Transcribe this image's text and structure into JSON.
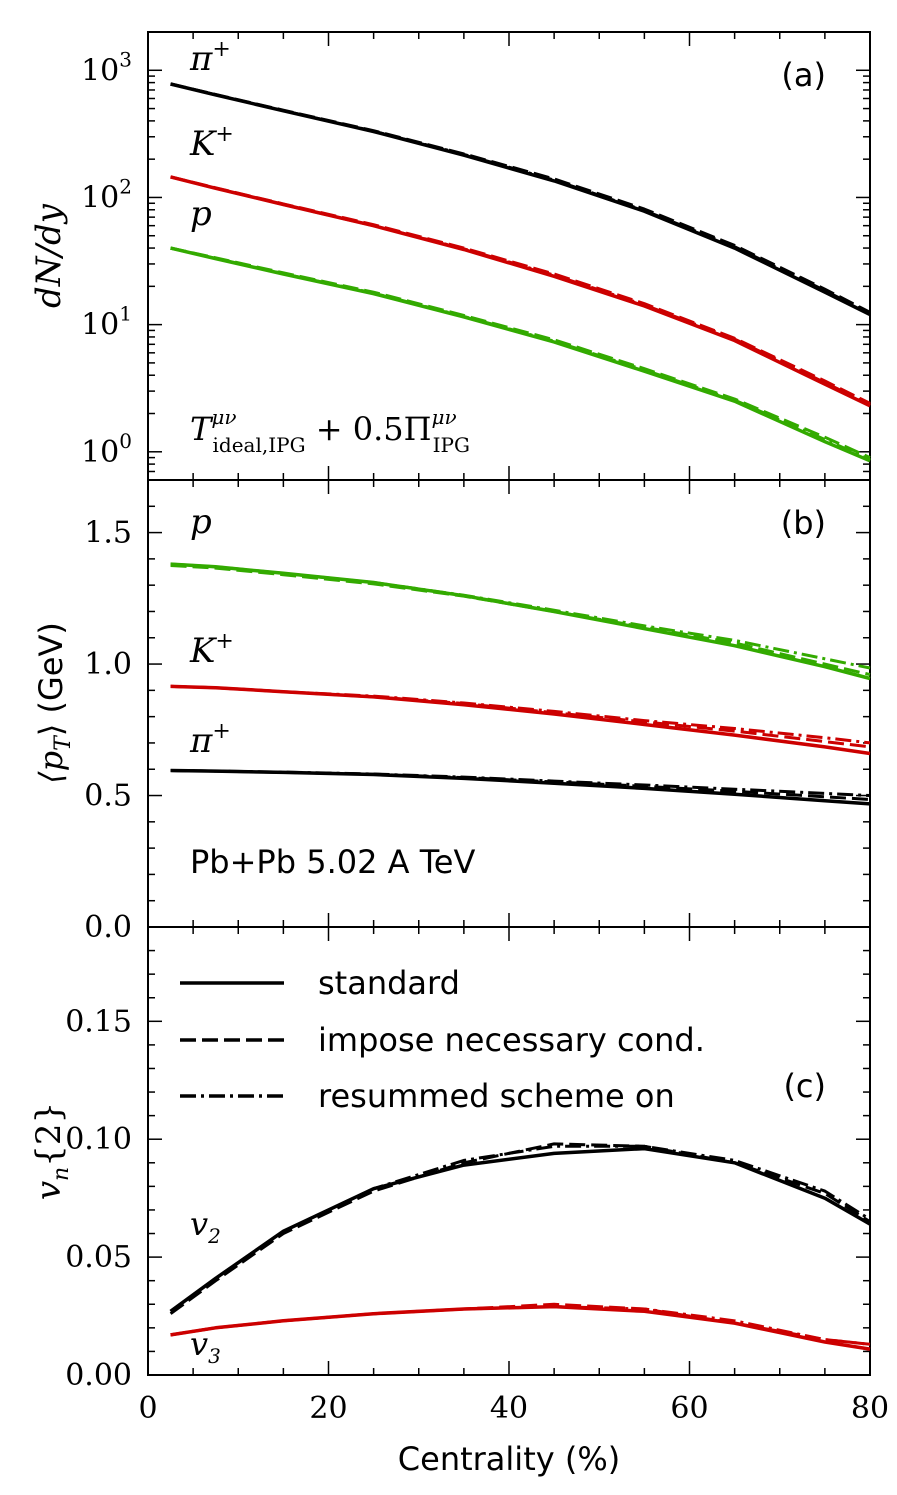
{
  "chart_data": [
    {
      "panel": "(a)",
      "type": "line",
      "yscale": "log",
      "ylim": [
        0.6,
        2000
      ],
      "ylabel": "dN/dy",
      "yticks": [
        {
          "value": 1,
          "base": "10",
          "exp": "0"
        },
        {
          "value": 10,
          "base": "10",
          "exp": "1"
        },
        {
          "value": 100,
          "base": "10",
          "exp": "2"
        },
        {
          "value": 1000,
          "base": "10",
          "exp": "3"
        }
      ],
      "annotation": {
        "T": "T",
        "T_sup": "μν",
        "T_sub": "ideal,IPG",
        "mid": " + 0.5Π",
        "Pi_sup": "μν",
        "Pi_sub": "IPG"
      },
      "series": [
        {
          "name": "π+",
          "label_base": "π",
          "label_sup": "+",
          "color": "#000000",
          "x": [
            2.5,
            7.5,
            15,
            25,
            35,
            45,
            55,
            65,
            75,
            80
          ],
          "standard": [
            780,
            640,
            480,
            330,
            215,
            135,
            78,
            40,
            18,
            12
          ],
          "necessary": [
            780,
            645,
            485,
            335,
            220,
            140,
            81,
            42,
            19,
            12.5
          ],
          "resummed": [
            780,
            642,
            482,
            332,
            218,
            137,
            79,
            41,
            18.5,
            12.2
          ]
        },
        {
          "name": "K+",
          "label_base": "K",
          "label_sup": "+",
          "color": "#cc0000",
          "x": [
            2.5,
            7.5,
            15,
            25,
            35,
            45,
            55,
            65,
            75,
            80
          ],
          "standard": [
            145,
            118,
            88,
            60,
            39,
            24,
            14,
            7.5,
            3.4,
            2.3
          ],
          "necessary": [
            145,
            119,
            89,
            61,
            40,
            25,
            14.6,
            7.8,
            3.6,
            2.4
          ],
          "resummed": [
            145,
            118,
            88,
            60,
            39.5,
            24.5,
            14.3,
            7.7,
            3.5,
            2.35
          ]
        },
        {
          "name": "p",
          "label_base": "p",
          "label_sup": "",
          "color": "#33aa00",
          "x": [
            2.5,
            7.5,
            15,
            25,
            35,
            45,
            55,
            65,
            75,
            80
          ],
          "standard": [
            40,
            33,
            25,
            17.5,
            11.5,
            7.3,
            4.3,
            2.5,
            1.2,
            0.85
          ],
          "necessary": [
            40,
            33.5,
            25.5,
            18,
            11.8,
            7.6,
            4.5,
            2.6,
            1.3,
            0.9
          ],
          "resummed": [
            40,
            33.2,
            25.2,
            17.7,
            11.6,
            7.4,
            4.4,
            2.55,
            1.25,
            0.87
          ]
        }
      ]
    },
    {
      "panel": "(b)",
      "type": "line",
      "ylim": [
        0,
        1.7
      ],
      "ylabel_math": "⟨p",
      "ylabel_sub": "T",
      "ylabel_close": "⟩",
      "ylabel_unit": " (GeV)",
      "yticks": [
        "0.0",
        "0.5",
        "1.0",
        "1.5"
      ],
      "annotation": "Pb+Pb 5.02 A TeV",
      "series": [
        {
          "name": "p",
          "label_base": "p",
          "label_sup": "",
          "color": "#33aa00",
          "x": [
            2.5,
            7.5,
            15,
            25,
            35,
            45,
            55,
            65,
            75,
            80
          ],
          "standard": [
            1.38,
            1.37,
            1.345,
            1.31,
            1.26,
            1.2,
            1.135,
            1.07,
            0.99,
            0.945
          ],
          "necessary": [
            1.375,
            1.365,
            1.34,
            1.305,
            1.258,
            1.2,
            1.14,
            1.08,
            1.0,
            0.96
          ],
          "resummed": [
            1.38,
            1.37,
            1.345,
            1.31,
            1.262,
            1.205,
            1.145,
            1.09,
            1.02,
            0.985
          ]
        },
        {
          "name": "K+",
          "label_base": "K",
          "label_sup": "+",
          "color": "#cc0000",
          "x": [
            2.5,
            7.5,
            15,
            25,
            35,
            45,
            55,
            65,
            75,
            80
          ],
          "standard": [
            0.915,
            0.91,
            0.895,
            0.875,
            0.845,
            0.81,
            0.77,
            0.73,
            0.685,
            0.66
          ],
          "necessary": [
            0.915,
            0.91,
            0.895,
            0.875,
            0.85,
            0.815,
            0.78,
            0.745,
            0.705,
            0.685
          ],
          "resummed": [
            0.915,
            0.91,
            0.895,
            0.878,
            0.852,
            0.82,
            0.785,
            0.755,
            0.72,
            0.7
          ]
        },
        {
          "name": "π+",
          "label_base": "π",
          "label_sup": "+",
          "color": "#000000",
          "x": [
            2.5,
            7.5,
            15,
            25,
            35,
            45,
            55,
            65,
            75,
            80
          ],
          "standard": [
            0.595,
            0.593,
            0.588,
            0.58,
            0.565,
            0.547,
            0.527,
            0.505,
            0.48,
            0.468
          ],
          "necessary": [
            0.595,
            0.593,
            0.588,
            0.581,
            0.568,
            0.552,
            0.535,
            0.516,
            0.495,
            0.485
          ],
          "resummed": [
            0.595,
            0.593,
            0.589,
            0.582,
            0.57,
            0.555,
            0.54,
            0.524,
            0.508,
            0.5
          ]
        }
      ]
    },
    {
      "panel": "(c)",
      "type": "line",
      "ylim": [
        0,
        0.19
      ],
      "ylabel_math": "v",
      "ylabel_sub": "n",
      "ylabel_tail": "{2}",
      "yticks": [
        "0.00",
        "0.05",
        "0.10",
        "0.15"
      ],
      "xlabel": "Centrality (%)",
      "xlim": [
        0,
        80
      ],
      "xticks": [
        "0",
        "20",
        "40",
        "60",
        "80"
      ],
      "legend": {
        "position": "top-left",
        "entries": [
          {
            "label": "standard",
            "style": "solid"
          },
          {
            "label": "impose necessary cond.",
            "style": "dashed"
          },
          {
            "label": "resummed scheme on",
            "style": "dashdot"
          }
        ]
      },
      "series": [
        {
          "name": "v2",
          "label_base": "v",
          "label_sub": "2",
          "color": "#000000",
          "x": [
            2.5,
            7.5,
            15,
            25,
            35,
            45,
            55,
            65,
            75,
            80
          ],
          "standard": [
            0.027,
            0.041,
            0.061,
            0.079,
            0.089,
            0.094,
            0.096,
            0.09,
            0.075,
            0.064
          ],
          "necessary": [
            0.026,
            0.04,
            0.06,
            0.078,
            0.09,
            0.098,
            0.097,
            0.09,
            0.077,
            0.065
          ],
          "resummed": [
            0.027,
            0.041,
            0.061,
            0.079,
            0.091,
            0.097,
            0.097,
            0.091,
            0.078,
            0.066
          ]
        },
        {
          "name": "v3",
          "label_base": "v",
          "label_sub": "3",
          "color": "#cc0000",
          "x": [
            2.5,
            7.5,
            15,
            25,
            35,
            45,
            55,
            65,
            75,
            80
          ],
          "standard": [
            0.017,
            0.02,
            0.023,
            0.026,
            0.028,
            0.029,
            0.027,
            0.022,
            0.014,
            0.011
          ],
          "necessary": [
            0.017,
            0.02,
            0.023,
            0.026,
            0.028,
            0.03,
            0.028,
            0.022,
            0.015,
            0.013
          ],
          "resummed": [
            0.017,
            0.02,
            0.023,
            0.026,
            0.028,
            0.029,
            0.028,
            0.023,
            0.015,
            0.013
          ]
        }
      ]
    }
  ],
  "panel_labels": [
    "(a)",
    "(b)",
    "(c)"
  ]
}
